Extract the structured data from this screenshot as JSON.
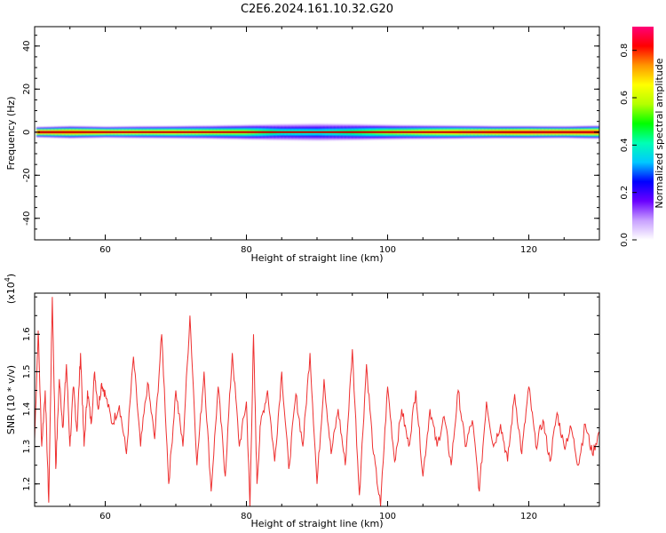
{
  "title": "C2E6.2024.161.10.32.G20",
  "chart_data": [
    {
      "type": "heatmap",
      "title": "",
      "xlabel": "Height of straight line (km)",
      "ylabel": "Frequency (Hz)",
      "xlim": [
        50,
        130
      ],
      "ylim": [
        -50,
        49
      ],
      "xticks": [
        60,
        80,
        100,
        120
      ],
      "yticks": [
        -40,
        -20,
        0,
        20,
        40
      ],
      "grid": false,
      "band_center_hz": 0,
      "band_half_width_hz": [
        [
          50,
          2.5
        ],
        [
          55,
          3.0
        ],
        [
          60,
          2.7
        ],
        [
          65,
          2.9
        ],
        [
          70,
          3.0
        ],
        [
          75,
          3.2
        ],
        [
          80,
          3.5
        ],
        [
          85,
          3.8
        ],
        [
          90,
          4.0
        ],
        [
          95,
          3.8
        ],
        [
          100,
          3.5
        ],
        [
          105,
          3.3
        ],
        [
          110,
          3.2
        ],
        [
          115,
          3.0
        ],
        [
          120,
          3.0
        ],
        [
          125,
          2.9
        ],
        [
          130,
          3.2
        ]
      ],
      "ridge_amplitude": [
        [
          50,
          0.85
        ],
        [
          55,
          0.8
        ],
        [
          60,
          0.75
        ],
        [
          65,
          0.7
        ],
        [
          70,
          0.7
        ],
        [
          75,
          0.65
        ],
        [
          80,
          0.6
        ],
        [
          85,
          0.45
        ],
        [
          90,
          0.42
        ],
        [
          95,
          0.5
        ],
        [
          100,
          0.6
        ],
        [
          105,
          0.7
        ],
        [
          110,
          0.75
        ],
        [
          115,
          0.8
        ],
        [
          120,
          0.85
        ],
        [
          125,
          0.85
        ],
        [
          130,
          0.85
        ]
      ],
      "colorbar": {
        "label": "Normalized spectral amplitude",
        "range": [
          0.0,
          0.9
        ],
        "ticks": [
          0.0,
          0.2,
          0.4,
          0.6,
          0.8
        ],
        "tick_labels": [
          "0.0",
          "0.2",
          "0.4",
          "0.6",
          "0.8"
        ],
        "colors": [
          "#ffffff",
          "#c8a0ff",
          "#6a00ff",
          "#0000ff",
          "#00c8ff",
          "#00ffb4",
          "#00ff00",
          "#b4ff00",
          "#ffff00",
          "#ff9600",
          "#ff0000",
          "#ff0078"
        ]
      }
    },
    {
      "type": "line",
      "title": "",
      "xlabel": "Height of straight line (km)",
      "ylabel": "SNR (10 * v/v)",
      "y_multiplier": "(x10",
      "y_multiplier_exp": "4",
      "y_multiplier_close": ")",
      "xlim": [
        50,
        130
      ],
      "ylim": [
        1.14,
        1.71
      ],
      "xticks": [
        60,
        80,
        100,
        120
      ],
      "yticks": [
        1.2,
        1.3,
        1.4,
        1.5,
        1.6
      ],
      "ytick_labels": [
        "1.2",
        "1.3",
        "1.4",
        "1.5",
        "1.6"
      ],
      "color": "#ee3030",
      "series": [
        {
          "x": [
            50,
            50.5,
            51,
            51.5,
            52,
            52.5,
            53,
            53.5,
            54,
            54.5,
            55,
            55.5,
            56,
            56.5,
            57,
            57.5,
            58,
            58.5,
            59,
            59.5,
            60,
            61,
            62,
            63,
            64,
            65,
            66,
            67,
            68,
            69,
            70,
            71,
            72,
            73,
            74,
            75,
            76,
            77,
            78,
            79,
            80,
            80.5,
            81,
            81.5,
            82,
            83,
            84,
            85,
            86,
            87,
            88,
            89,
            90,
            91,
            92,
            93,
            94,
            95,
            96,
            97,
            98,
            99,
            100,
            101,
            102,
            103,
            104,
            105,
            106,
            107,
            108,
            109,
            110,
            111,
            112,
            113,
            114,
            115,
            116,
            117,
            118,
            119,
            120,
            121,
            122,
            123,
            124,
            125,
            126,
            127,
            128,
            129,
            130
          ],
          "y": [
            1.32,
            1.61,
            1.3,
            1.45,
            1.15,
            1.7,
            1.24,
            1.48,
            1.35,
            1.52,
            1.3,
            1.46,
            1.34,
            1.55,
            1.3,
            1.45,
            1.36,
            1.5,
            1.4,
            1.47,
            1.44,
            1.36,
            1.41,
            1.28,
            1.54,
            1.3,
            1.47,
            1.32,
            1.6,
            1.2,
            1.45,
            1.3,
            1.65,
            1.25,
            1.5,
            1.18,
            1.46,
            1.22,
            1.55,
            1.3,
            1.42,
            1.14,
            1.6,
            1.2,
            1.36,
            1.45,
            1.26,
            1.5,
            1.24,
            1.44,
            1.3,
            1.55,
            1.2,
            1.48,
            1.28,
            1.4,
            1.25,
            1.56,
            1.17,
            1.52,
            1.28,
            1.14,
            1.46,
            1.26,
            1.4,
            1.3,
            1.45,
            1.22,
            1.4,
            1.3,
            1.38,
            1.25,
            1.45,
            1.3,
            1.37,
            1.18,
            1.42,
            1.3,
            1.36,
            1.26,
            1.44,
            1.28,
            1.46,
            1.3,
            1.37,
            1.26,
            1.39,
            1.3,
            1.35,
            1.25,
            1.36,
            1.28,
            1.34
          ]
        }
      ]
    }
  ]
}
